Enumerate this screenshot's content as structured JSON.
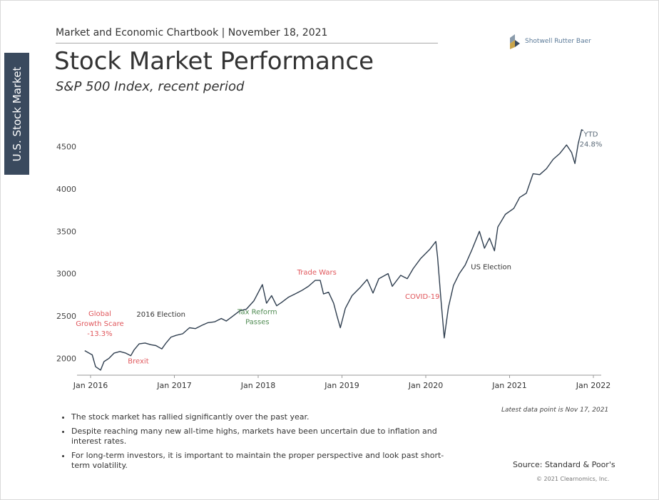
{
  "header": {
    "chartbook": "Market and Economic Chartbook | November 18, 2021",
    "title": "Stock Market Performance",
    "subtitle": "S&P 500 Index, recent period",
    "side_tab": "U.S. Stock Market",
    "logo_text": "Shotwell Rutter Baer"
  },
  "chart_data": {
    "type": "line",
    "ylim": [
      1800,
      4800
    ],
    "xlim": [
      2016.0,
      2022.0
    ],
    "yticks": [
      "2000",
      "2500",
      "3000",
      "3500",
      "4000",
      "4500"
    ],
    "xticks": [
      "Jan 2016",
      "Jan 2017",
      "Jan 2018",
      "Jan 2019",
      "Jan 2020",
      "Jan 2021",
      "Jan 2022"
    ],
    "series": [
      {
        "color": "#2f3e4f",
        "points": [
          [
            2015.93,
            2090
          ],
          [
            2016.02,
            2040
          ],
          [
            2016.06,
            1900
          ],
          [
            2016.12,
            1860
          ],
          [
            2016.16,
            1960
          ],
          [
            2016.22,
            2000
          ],
          [
            2016.28,
            2060
          ],
          [
            2016.35,
            2080
          ],
          [
            2016.42,
            2060
          ],
          [
            2016.48,
            2030
          ],
          [
            2016.52,
            2100
          ],
          [
            2016.58,
            2170
          ],
          [
            2016.65,
            2180
          ],
          [
            2016.72,
            2160
          ],
          [
            2016.78,
            2150
          ],
          [
            2016.85,
            2110
          ],
          [
            2016.9,
            2180
          ],
          [
            2016.96,
            2250
          ],
          [
            2017.02,
            2270
          ],
          [
            2017.1,
            2290
          ],
          [
            2017.18,
            2360
          ],
          [
            2017.25,
            2350
          ],
          [
            2017.33,
            2390
          ],
          [
            2017.4,
            2420
          ],
          [
            2017.48,
            2430
          ],
          [
            2017.56,
            2470
          ],
          [
            2017.62,
            2440
          ],
          [
            2017.7,
            2500
          ],
          [
            2017.78,
            2560
          ],
          [
            2017.86,
            2580
          ],
          [
            2017.95,
            2680
          ],
          [
            2018.05,
            2870
          ],
          [
            2018.1,
            2650
          ],
          [
            2018.16,
            2740
          ],
          [
            2018.22,
            2620
          ],
          [
            2018.28,
            2660
          ],
          [
            2018.36,
            2720
          ],
          [
            2018.44,
            2760
          ],
          [
            2018.52,
            2800
          ],
          [
            2018.6,
            2850
          ],
          [
            2018.68,
            2920
          ],
          [
            2018.74,
            2920
          ],
          [
            2018.78,
            2760
          ],
          [
            2018.84,
            2780
          ],
          [
            2018.9,
            2650
          ],
          [
            2018.94,
            2500
          ],
          [
            2018.98,
            2360
          ],
          [
            2019.04,
            2590
          ],
          [
            2019.12,
            2740
          ],
          [
            2019.22,
            2840
          ],
          [
            2019.3,
            2930
          ],
          [
            2019.37,
            2770
          ],
          [
            2019.44,
            2940
          ],
          [
            2019.55,
            3000
          ],
          [
            2019.6,
            2850
          ],
          [
            2019.7,
            2980
          ],
          [
            2019.78,
            2940
          ],
          [
            2019.85,
            3060
          ],
          [
            2019.94,
            3180
          ],
          [
            2020.05,
            3290
          ],
          [
            2020.12,
            3380
          ],
          [
            2020.14,
            3200
          ],
          [
            2020.18,
            2700
          ],
          [
            2020.22,
            2240
          ],
          [
            2020.27,
            2600
          ],
          [
            2020.33,
            2860
          ],
          [
            2020.4,
            3000
          ],
          [
            2020.47,
            3100
          ],
          [
            2020.55,
            3280
          ],
          [
            2020.64,
            3500
          ],
          [
            2020.7,
            3300
          ],
          [
            2020.76,
            3420
          ],
          [
            2020.82,
            3270
          ],
          [
            2020.86,
            3550
          ],
          [
            2020.95,
            3700
          ],
          [
            2021.05,
            3770
          ],
          [
            2021.12,
            3900
          ],
          [
            2021.2,
            3950
          ],
          [
            2021.28,
            4180
          ],
          [
            2021.36,
            4170
          ],
          [
            2021.44,
            4240
          ],
          [
            2021.52,
            4350
          ],
          [
            2021.6,
            4420
          ],
          [
            2021.68,
            4520
          ],
          [
            2021.74,
            4430
          ],
          [
            2021.78,
            4300
          ],
          [
            2021.82,
            4540
          ],
          [
            2021.86,
            4700
          ],
          [
            2021.88,
            4690
          ]
        ]
      }
    ],
    "annotations": [
      {
        "lines": [
          "YTD",
          "24.8%"
        ],
        "x": 2021.97,
        "y": 4620,
        "color": "#5b6a78",
        "anchor": "middle"
      },
      {
        "lines": [
          "Global",
          "Growth Scare",
          "-13.3%"
        ],
        "x": 2016.11,
        "y": 2500,
        "color": "#e0565b",
        "anchor": "middle"
      },
      {
        "lines": [
          "Brexit"
        ],
        "x": 2016.57,
        "y": 1940,
        "color": "#e0565b",
        "anchor": "middle"
      },
      {
        "lines": [
          "2016 Election"
        ],
        "x": 2016.84,
        "y": 2490,
        "color": "#333333",
        "anchor": "middle"
      },
      {
        "lines": [
          "Tax Reform",
          "Passes"
        ],
        "x": 2017.99,
        "y": 2520,
        "color": "#4f8b52",
        "anchor": "middle"
      },
      {
        "lines": [
          "Trade Wars"
        ],
        "x": 2018.7,
        "y": 2990,
        "color": "#e0565b",
        "anchor": "middle"
      },
      {
        "lines": [
          "COVID-19"
        ],
        "x": 2019.96,
        "y": 2700,
        "color": "#e0565b",
        "anchor": "middle"
      },
      {
        "lines": [
          "US Election"
        ],
        "x": 2020.78,
        "y": 3050,
        "color": "#333333",
        "anchor": "middle"
      }
    ]
  },
  "footer": {
    "bullets": [
      "The stock market has rallied significantly over the past year.",
      "Despite reaching many new all-time highs, markets have been uncertain due to inflation and interest rates.",
      "For long-term investors, it is important to maintain the proper perspective and look past short-term volatility."
    ],
    "latest": "Latest data point is Nov 17, 2021",
    "source": "Source: Standard & Poor's",
    "copyright": "© 2021 Clearnomics, Inc."
  }
}
